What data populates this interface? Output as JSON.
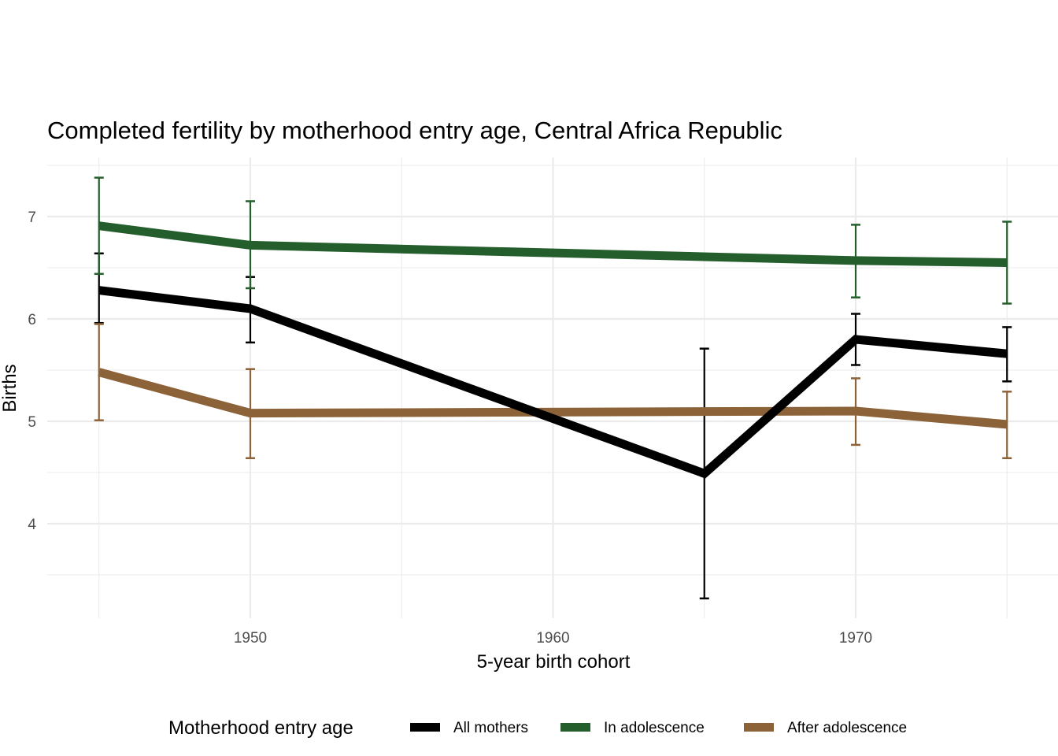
{
  "chart_data": {
    "type": "line",
    "title": "Completed fertility by motherhood entry age,  Central Africa Republic",
    "xlabel": "5-year birth cohort",
    "ylabel": "Births",
    "xlim": [
      1944,
      1977
    ],
    "ylim": [
      3.05,
      7.55
    ],
    "x_ticks": [
      1950,
      1960,
      1970
    ],
    "x_tick_labels": [
      "1950",
      "1960",
      "1970"
    ],
    "x_minor": [
      1945,
      1955,
      1965,
      1975
    ],
    "y_ticks": [
      4,
      5,
      6,
      7
    ],
    "y_tick_labels": [
      "4",
      "5",
      "6",
      "7"
    ],
    "y_minor": [
      3.5,
      4.5,
      5.5,
      6.5,
      7.5
    ],
    "grid": true,
    "legend": {
      "title": "Motherhood entry age",
      "position": "bottom"
    },
    "series": [
      {
        "name": "All mothers",
        "color": "#000000",
        "points": [
          {
            "x": 1945,
            "y": 6.28,
            "lo": 5.96,
            "hi": 6.64
          },
          {
            "x": 1950,
            "y": 6.1,
            "lo": 5.77,
            "hi": 6.41
          },
          {
            "x": 1965,
            "y": 4.49,
            "lo": 3.27,
            "hi": 5.71
          },
          {
            "x": 1970,
            "y": 5.8,
            "lo": 5.55,
            "hi": 6.05
          },
          {
            "x": 1975,
            "y": 5.66,
            "lo": 5.39,
            "hi": 5.92
          }
        ]
      },
      {
        "name": "In adolescence",
        "color": "#245e2c",
        "points": [
          {
            "x": 1945,
            "y": 6.91,
            "lo": 6.44,
            "hi": 7.38
          },
          {
            "x": 1950,
            "y": 6.72,
            "lo": 6.3,
            "hi": 7.15
          },
          {
            "x": 1970,
            "y": 6.57,
            "lo": 6.21,
            "hi": 6.92
          },
          {
            "x": 1975,
            "y": 6.55,
            "lo": 6.15,
            "hi": 6.95
          }
        ]
      },
      {
        "name": "After adolescence",
        "color": "#8c6239",
        "points": [
          {
            "x": 1945,
            "y": 5.48,
            "lo": 5.01,
            "hi": 5.95
          },
          {
            "x": 1950,
            "y": 5.08,
            "lo": 4.64,
            "hi": 5.51
          },
          {
            "x": 1970,
            "y": 5.1,
            "lo": 4.77,
            "hi": 5.42
          },
          {
            "x": 1975,
            "y": 4.97,
            "lo": 4.64,
            "hi": 5.29
          }
        ]
      }
    ]
  }
}
